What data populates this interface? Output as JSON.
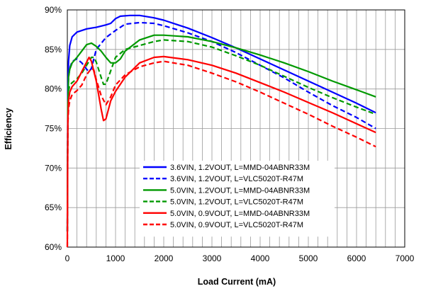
{
  "chart_data": {
    "type": "line",
    "title": "",
    "xlabel": "Load Current (mA)",
    "ylabel": "Efficiency",
    "xlim": [
      0,
      7000
    ],
    "ylim": [
      60,
      90
    ],
    "x_ticks": [
      0,
      1000,
      2000,
      3000,
      4000,
      5000,
      6000,
      7000
    ],
    "y_ticks": [
      60,
      65,
      70,
      75,
      80,
      85,
      90
    ],
    "y_tick_labels": [
      "60%",
      "65%",
      "70%",
      "75%",
      "80%",
      "85%",
      "90%"
    ],
    "grid": "on",
    "legend_position": "bottom-center",
    "series": [
      {
        "name": "3.6VIN, 1.2VOUT, L=MMD-04ABNR33M",
        "color": "#0000FF",
        "dash": "solid",
        "points": [
          [
            0,
            62
          ],
          [
            10,
            80
          ],
          [
            25,
            83.5
          ],
          [
            50,
            85.5
          ],
          [
            100,
            86.6
          ],
          [
            200,
            87.2
          ],
          [
            400,
            87.6
          ],
          [
            600,
            87.8
          ],
          [
            800,
            88.1
          ],
          [
            900,
            88.3
          ],
          [
            1000,
            88.9
          ],
          [
            1100,
            89.2
          ],
          [
            1300,
            89.3
          ],
          [
            1500,
            89.3
          ],
          [
            1800,
            89.0
          ],
          [
            2000,
            88.7
          ],
          [
            2500,
            87.7
          ],
          [
            3000,
            86.5
          ],
          [
            3500,
            85.2
          ],
          [
            4000,
            83.8
          ],
          [
            4500,
            82.4
          ],
          [
            5000,
            81.0
          ],
          [
            5500,
            79.6
          ],
          [
            6000,
            78.2
          ],
          [
            6400,
            77.0
          ]
        ]
      },
      {
        "name": "3.6VIN, 1.2VOUT, L=VLC5020T-R47M",
        "color": "#0000FF",
        "dash": "dashed",
        "points": [
          [
            0,
            62
          ],
          [
            10,
            79
          ],
          [
            25,
            81.5
          ],
          [
            50,
            82.6
          ],
          [
            100,
            83.5
          ],
          [
            200,
            83.8
          ],
          [
            300,
            83.3
          ],
          [
            400,
            82.5
          ],
          [
            450,
            82.2
          ],
          [
            500,
            82.6
          ],
          [
            600,
            85.0
          ],
          [
            800,
            86.5
          ],
          [
            1000,
            87.4
          ],
          [
            1200,
            88.2
          ],
          [
            1500,
            88.4
          ],
          [
            1800,
            88.3
          ],
          [
            2000,
            88.0
          ],
          [
            2500,
            87.1
          ],
          [
            3000,
            86.0
          ],
          [
            3500,
            84.6
          ],
          [
            4000,
            83.0
          ],
          [
            4500,
            81.4
          ],
          [
            5000,
            79.6
          ],
          [
            5500,
            77.9
          ],
          [
            6000,
            76.4
          ],
          [
            6400,
            75.0
          ]
        ]
      },
      {
        "name": "5.0VIN, 1.2VOUT, L=MMD-04ABNR33M",
        "color": "#009900",
        "dash": "solid",
        "points": [
          [
            0,
            62
          ],
          [
            10,
            78
          ],
          [
            25,
            81.5
          ],
          [
            50,
            82.5
          ],
          [
            100,
            83.3
          ],
          [
            200,
            84.0
          ],
          [
            300,
            84.8
          ],
          [
            400,
            85.6
          ],
          [
            500,
            85.8
          ],
          [
            600,
            85.4
          ],
          [
            700,
            84.8
          ],
          [
            800,
            84.0
          ],
          [
            900,
            83.3
          ],
          [
            1000,
            83.3
          ],
          [
            1100,
            83.8
          ],
          [
            1200,
            84.8
          ],
          [
            1500,
            86.2
          ],
          [
            1800,
            86.8
          ],
          [
            2000,
            86.8
          ],
          [
            2500,
            86.6
          ],
          [
            3000,
            86.0
          ],
          [
            3500,
            85.2
          ],
          [
            4000,
            84.3
          ],
          [
            4500,
            83.3
          ],
          [
            5000,
            82.2
          ],
          [
            5500,
            81.0
          ],
          [
            6000,
            79.9
          ],
          [
            6400,
            79.0
          ]
        ]
      },
      {
        "name": "5.0VIN, 1.2VOUT, L=VLC5020T-R47M",
        "color": "#009900",
        "dash": "dashed",
        "points": [
          [
            0,
            62
          ],
          [
            10,
            78
          ],
          [
            25,
            79.8
          ],
          [
            50,
            80.5
          ],
          [
            100,
            80.8
          ],
          [
            200,
            81.3
          ],
          [
            300,
            82.0
          ],
          [
            400,
            83.0
          ],
          [
            500,
            84.0
          ],
          [
            550,
            84.0
          ],
          [
            600,
            83.4
          ],
          [
            700,
            81.5
          ],
          [
            750,
            80.6
          ],
          [
            800,
            80.6
          ],
          [
            900,
            82.3
          ],
          [
            1000,
            84.0
          ],
          [
            1200,
            85.0
          ],
          [
            1500,
            85.5
          ],
          [
            1800,
            86.0
          ],
          [
            2000,
            86.2
          ],
          [
            2500,
            86.0
          ],
          [
            3000,
            85.3
          ],
          [
            3500,
            84.2
          ],
          [
            4000,
            83.0
          ],
          [
            4500,
            81.6
          ],
          [
            5000,
            80.2
          ],
          [
            5500,
            78.9
          ],
          [
            6000,
            77.7
          ],
          [
            6400,
            76.8
          ]
        ]
      },
      {
        "name": "5.0VIN, 0.9VOUT, L=MMD-04ABNR33M",
        "color": "#FF0000",
        "dash": "solid",
        "points": [
          [
            0,
            60
          ],
          [
            10,
            76
          ],
          [
            25,
            78.5
          ],
          [
            50,
            79.6
          ],
          [
            100,
            80.3
          ],
          [
            200,
            81.0
          ],
          [
            300,
            82.2
          ],
          [
            400,
            83.4
          ],
          [
            450,
            84.0
          ],
          [
            500,
            83.5
          ],
          [
            600,
            81.0
          ],
          [
            700,
            77.5
          ],
          [
            750,
            76.0
          ],
          [
            800,
            76.2
          ],
          [
            900,
            78.5
          ],
          [
            1000,
            79.7
          ],
          [
            1200,
            81.5
          ],
          [
            1500,
            83.3
          ],
          [
            1800,
            84.0
          ],
          [
            2000,
            84.1
          ],
          [
            2500,
            83.7
          ],
          [
            3000,
            83.0
          ],
          [
            3500,
            82.0
          ],
          [
            4000,
            80.8
          ],
          [
            4500,
            79.6
          ],
          [
            5000,
            78.3
          ],
          [
            5500,
            77.0
          ],
          [
            6000,
            75.6
          ],
          [
            6400,
            74.5
          ]
        ]
      },
      {
        "name": "5.0VIN, 0.9VOUT, L=VLC5020T-R47M",
        "color": "#FF0000",
        "dash": "dashed",
        "points": [
          [
            0,
            60
          ],
          [
            10,
            75.5
          ],
          [
            25,
            77.5
          ],
          [
            50,
            78.5
          ],
          [
            100,
            79.3
          ],
          [
            200,
            79.8
          ],
          [
            300,
            80.5
          ],
          [
            400,
            81.8
          ],
          [
            500,
            82.6
          ],
          [
            550,
            82.4
          ],
          [
            600,
            81.2
          ],
          [
            700,
            79.2
          ],
          [
            800,
            78.0
          ],
          [
            900,
            79.0
          ],
          [
            1000,
            80.5
          ],
          [
            1200,
            81.8
          ],
          [
            1500,
            82.8
          ],
          [
            1800,
            83.3
          ],
          [
            2000,
            83.5
          ],
          [
            2500,
            83.0
          ],
          [
            3000,
            82.0
          ],
          [
            3500,
            80.9
          ],
          [
            4000,
            79.6
          ],
          [
            4500,
            78.2
          ],
          [
            5000,
            76.8
          ],
          [
            5500,
            75.3
          ],
          [
            6000,
            73.9
          ],
          [
            6400,
            72.7
          ]
        ]
      }
    ]
  }
}
